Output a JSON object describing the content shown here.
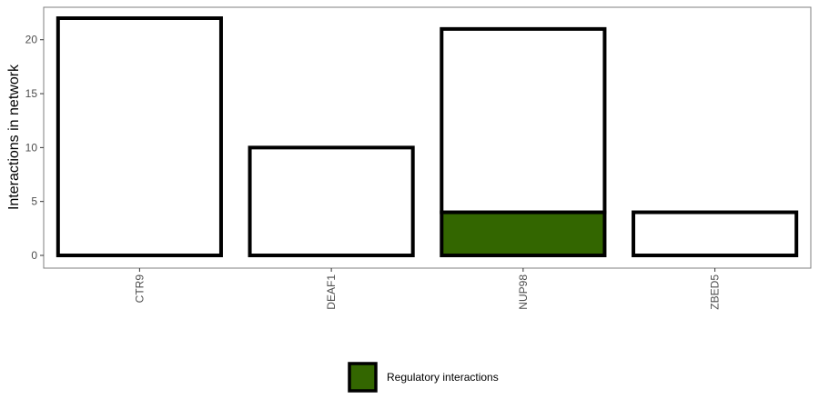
{
  "chart_data": {
    "type": "bar",
    "stacked": true,
    "categories": [
      "CTR9",
      "DEAF1",
      "NUP98",
      "ZBED5"
    ],
    "series": [
      {
        "name": "Regulatory interactions",
        "values": [
          0,
          0,
          4,
          0
        ],
        "color": "#336600"
      },
      {
        "name": "",
        "values": [
          22,
          10,
          17,
          4
        ],
        "color": "#ffffff"
      }
    ],
    "totals": [
      22,
      10,
      21,
      4
    ],
    "ylabel": "Interactions in network",
    "xlabel": "",
    "ylim": [
      0,
      22.5
    ],
    "yticks": [
      "0",
      "5",
      "10",
      "15",
      "20"
    ],
    "grid": false,
    "legend": {
      "position": "bottom",
      "entries": [
        "Regulatory interactions"
      ]
    },
    "bar_outline_color": "#000000",
    "panel_border_color": "#7f7f7f"
  }
}
